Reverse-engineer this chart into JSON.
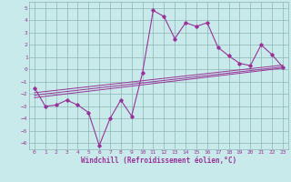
{
  "xlabel": "Windchill (Refroidissement éolien,°C)",
  "bg_color": "#c8eaea",
  "grid_color": "#8cb4b4",
  "line_color": "#993399",
  "ylim": [
    -6.5,
    5.5
  ],
  "xlim": [
    -0.5,
    23.5
  ],
  "yticks": [
    -6,
    -5,
    -4,
    -3,
    -2,
    -1,
    0,
    1,
    2,
    3,
    4,
    5
  ],
  "xticks": [
    0,
    1,
    2,
    3,
    4,
    5,
    6,
    7,
    8,
    9,
    10,
    11,
    12,
    13,
    14,
    15,
    16,
    17,
    18,
    19,
    20,
    21,
    22,
    23
  ],
  "main_series_x": [
    0,
    1,
    2,
    3,
    4,
    5,
    6,
    7,
    8,
    9,
    10,
    11,
    12,
    13,
    14,
    15,
    16,
    17,
    18,
    19,
    20,
    21,
    22,
    23
  ],
  "main_series_y": [
    -1.5,
    -3.0,
    -2.9,
    -2.5,
    -2.9,
    -3.5,
    -6.2,
    -4.0,
    -2.5,
    -3.8,
    -0.3,
    4.8,
    4.3,
    2.5,
    3.8,
    3.5,
    3.8,
    1.8,
    1.1,
    0.5,
    0.3,
    2.0,
    1.2,
    0.2
  ],
  "reg_line1_x": [
    0,
    23
  ],
  "reg_line1_y": [
    -2.3,
    0.1
  ],
  "reg_line2_x": [
    0,
    23
  ],
  "reg_line2_y": [
    -2.1,
    0.2
  ],
  "reg_line3_x": [
    0,
    23
  ],
  "reg_line3_y": [
    -1.9,
    0.35
  ],
  "tick_fontsize": 4.5,
  "xlabel_fontsize": 5.5
}
